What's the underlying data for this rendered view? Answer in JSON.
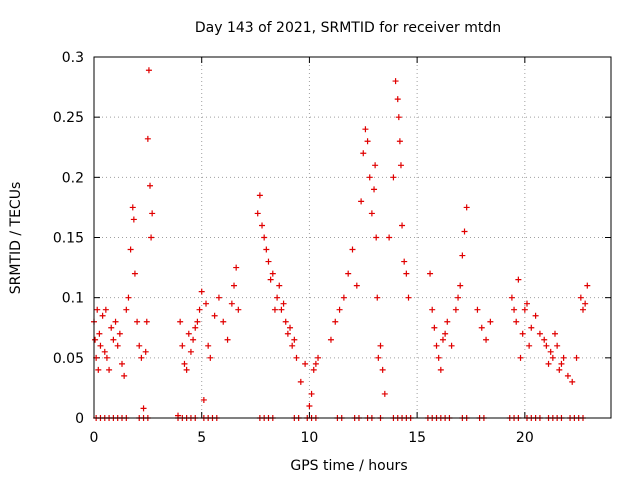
{
  "chart_data": {
    "type": "scatter",
    "title": "Day 143 of 2021, SRMTID for receiver mtdn",
    "xlabel": "GPS time / hours",
    "ylabel": "SRMTID / TECUs",
    "xlim": [
      0,
      24
    ],
    "ylim": [
      0,
      0.3
    ],
    "xticks": [
      0,
      5,
      10,
      15,
      20
    ],
    "yticks": [
      0,
      0.05,
      0.1,
      0.15,
      0.2,
      0.25,
      0.3
    ],
    "xtick_labels": [
      "0",
      "5",
      "10",
      "15",
      "20"
    ],
    "ytick_labels": [
      "0",
      "0.05",
      "0.1",
      "0.15",
      "0.2",
      "0.25",
      "0.3"
    ],
    "grid": true,
    "marker": "+",
    "marker_color": "#e00000",
    "series": [
      {
        "name": "SRMTID",
        "x": [
          0.0,
          0.05,
          0.1,
          0.15,
          0.2,
          0.25,
          0.3,
          0.4,
          0.5,
          0.55,
          0.6,
          0.7,
          0.8,
          0.9,
          1.0,
          1.1,
          1.2,
          1.3,
          1.4,
          1.5,
          1.6,
          1.7,
          1.8,
          1.85,
          1.9,
          2.0,
          2.1,
          2.2,
          2.3,
          2.4,
          2.45,
          2.5,
          2.55,
          2.6,
          2.65,
          2.7,
          3.9,
          4.0,
          4.1,
          4.2,
          4.3,
          4.4,
          4.5,
          4.6,
          4.7,
          4.8,
          4.9,
          5.0,
          5.1,
          5.2,
          5.3,
          5.4,
          5.6,
          5.8,
          6.0,
          6.2,
          6.4,
          6.5,
          6.6,
          6.7,
          7.6,
          7.7,
          7.8,
          7.9,
          8.0,
          8.1,
          8.2,
          8.3,
          8.4,
          8.5,
          8.6,
          8.7,
          8.8,
          8.9,
          9.0,
          9.1,
          9.2,
          9.3,
          9.4,
          9.6,
          9.8,
          10.0,
          10.1,
          10.2,
          10.3,
          10.4,
          11.0,
          11.2,
          11.4,
          11.6,
          11.8,
          12.0,
          12.2,
          12.4,
          12.5,
          12.6,
          12.7,
          12.8,
          12.9,
          13.0,
          13.05,
          13.1,
          13.15,
          13.2,
          13.3,
          13.4,
          13.5,
          13.7,
          13.9,
          14.0,
          14.1,
          14.15,
          14.2,
          14.25,
          14.3,
          14.4,
          14.5,
          14.6,
          15.6,
          15.7,
          15.8,
          15.9,
          16.0,
          16.1,
          16.2,
          16.3,
          16.4,
          16.6,
          16.8,
          16.9,
          17.0,
          17.1,
          17.2,
          17.3,
          17.8,
          18.0,
          18.2,
          18.4,
          19.4,
          19.5,
          19.6,
          19.7,
          19.8,
          19.9,
          20.0,
          20.1,
          20.2,
          20.3,
          20.5,
          20.7,
          20.9,
          21.0,
          21.1,
          21.2,
          21.3,
          21.4,
          21.5,
          21.6,
          21.7,
          21.8,
          22.0,
          22.2,
          22.4,
          22.6,
          22.7,
          22.8,
          22.9,
          0.1,
          0.3,
          0.5,
          0.7,
          0.9,
          1.1,
          1.3,
          1.5,
          2.1,
          2.3,
          2.5,
          3.9,
          4.1,
          4.3,
          4.5,
          4.7,
          5.1,
          5.3,
          5.5,
          5.7,
          7.7,
          7.9,
          8.1,
          8.3,
          9.3,
          9.5,
          9.9,
          10.1,
          10.3,
          11.3,
          11.5,
          12.1,
          12.3,
          12.7,
          12.9,
          13.3,
          13.9,
          14.1,
          14.3,
          14.5,
          14.7,
          15.5,
          15.7,
          15.9,
          16.1,
          16.3,
          16.5,
          17.1,
          17.3,
          17.9,
          18.1,
          19.3,
          19.5,
          19.7,
          20.1,
          20.3,
          20.5,
          20.7,
          21.1,
          21.3,
          21.5,
          21.7,
          22.1,
          22.3,
          22.5,
          22.7
        ],
        "y": [
          0.08,
          0.065,
          0.05,
          0.09,
          0.04,
          0.07,
          0.06,
          0.085,
          0.055,
          0.09,
          0.05,
          0.04,
          0.075,
          0.065,
          0.08,
          0.06,
          0.07,
          0.045,
          0.035,
          0.09,
          0.1,
          0.14,
          0.175,
          0.165,
          0.12,
          0.08,
          0.06,
          0.05,
          0.008,
          0.055,
          0.08,
          0.232,
          0.289,
          0.193,
          0.15,
          0.17,
          0.002,
          0.08,
          0.06,
          0.045,
          0.04,
          0.07,
          0.055,
          0.065,
          0.075,
          0.08,
          0.09,
          0.105,
          0.015,
          0.095,
          0.06,
          0.05,
          0.085,
          0.1,
          0.08,
          0.065,
          0.095,
          0.11,
          0.125,
          0.09,
          0.17,
          0.185,
          0.16,
          0.15,
          0.14,
          0.13,
          0.115,
          0.12,
          0.09,
          0.1,
          0.11,
          0.09,
          0.095,
          0.08,
          0.07,
          0.075,
          0.06,
          0.065,
          0.05,
          0.03,
          0.045,
          0.01,
          0.02,
          0.04,
          0.045,
          0.05,
          0.065,
          0.08,
          0.09,
          0.1,
          0.12,
          0.14,
          0.11,
          0.18,
          0.22,
          0.24,
          0.23,
          0.2,
          0.17,
          0.19,
          0.21,
          0.15,
          0.1,
          0.05,
          0.06,
          0.04,
          0.02,
          0.15,
          0.2,
          0.28,
          0.265,
          0.25,
          0.23,
          0.21,
          0.16,
          0.13,
          0.12,
          0.1,
          0.12,
          0.09,
          0.075,
          0.06,
          0.05,
          0.04,
          0.065,
          0.07,
          0.08,
          0.06,
          0.09,
          0.1,
          0.11,
          0.135,
          0.155,
          0.175,
          0.09,
          0.075,
          0.065,
          0.08,
          0.1,
          0.09,
          0.08,
          0.115,
          0.05,
          0.07,
          0.09,
          0.095,
          0.06,
          0.075,
          0.085,
          0.07,
          0.065,
          0.06,
          0.045,
          0.055,
          0.05,
          0.07,
          0.06,
          0.04,
          0.045,
          0.05,
          0.035,
          0.03,
          0.05,
          0.1,
          0.09,
          0.095,
          0.11,
          0,
          0,
          0,
          0,
          0,
          0,
          0,
          0,
          0,
          0,
          0,
          0,
          0,
          0,
          0,
          0,
          0,
          0,
          0,
          0,
          0,
          0,
          0,
          0,
          0,
          0,
          0,
          0,
          0,
          0,
          0,
          0,
          0,
          0,
          0,
          0,
          0,
          0,
          0,
          0,
          0,
          0,
          0,
          0,
          0,
          0,
          0,
          0,
          0,
          0,
          0,
          0,
          0,
          0,
          0,
          0,
          0,
          0,
          0,
          0,
          0,
          0,
          0,
          0,
          0,
          0
        ]
      }
    ]
  }
}
